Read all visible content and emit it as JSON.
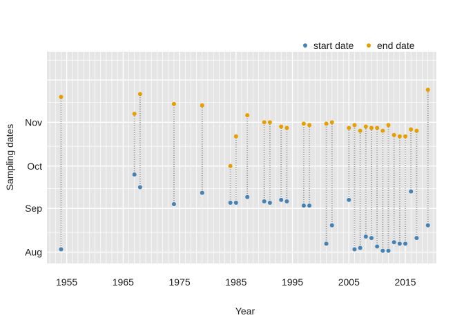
{
  "chart_data": {
    "type": "scatter",
    "xlabel": "Year",
    "ylabel": "Sampling dates",
    "xlim": [
      1951.5,
      2020.5
    ],
    "ylim": [
      "07-24",
      "12-21"
    ],
    "x_ticks": [
      {
        "value": 1955,
        "label": "1955"
      },
      {
        "value": 1965,
        "label": "1965"
      },
      {
        "value": 1975,
        "label": "1975"
      },
      {
        "value": 1985,
        "label": "1985"
      },
      {
        "value": 1995,
        "label": "1995"
      },
      {
        "value": 2005,
        "label": "2005"
      },
      {
        "value": 2015,
        "label": "2015"
      }
    ],
    "y_ticks": [
      {
        "value": "08-01",
        "label": "Aug"
      },
      {
        "value": "09-01",
        "label": "Sep"
      },
      {
        "value": "10-01",
        "label": "Oct"
      },
      {
        "value": "11-01",
        "label": "Nov"
      }
    ],
    "grid": true,
    "legend_position": "top-right",
    "series": [
      {
        "name": "start date",
        "color": "#4682b4",
        "points": [
          {
            "x": 1954,
            "y": "08-03"
          },
          {
            "x": 1967,
            "y": "09-25"
          },
          {
            "x": 1968,
            "y": "09-16"
          },
          {
            "x": 1974,
            "y": "09-04"
          },
          {
            "x": 1979,
            "y": "09-12"
          },
          {
            "x": 1984,
            "y": "09-05"
          },
          {
            "x": 1985,
            "y": "09-05"
          },
          {
            "x": 1987,
            "y": "09-09"
          },
          {
            "x": 1990,
            "y": "09-06"
          },
          {
            "x": 1991,
            "y": "09-05"
          },
          {
            "x": 1993,
            "y": "09-07"
          },
          {
            "x": 1994,
            "y": "09-06"
          },
          {
            "x": 1997,
            "y": "09-03"
          },
          {
            "x": 1998,
            "y": "09-03"
          },
          {
            "x": 2001,
            "y": "08-07"
          },
          {
            "x": 2002,
            "y": "08-20"
          },
          {
            "x": 2005,
            "y": "09-07"
          },
          {
            "x": 2006,
            "y": "08-03"
          },
          {
            "x": 2007,
            "y": "08-04"
          },
          {
            "x": 2008,
            "y": "08-12"
          },
          {
            "x": 2009,
            "y": "08-11"
          },
          {
            "x": 2010,
            "y": "08-05"
          },
          {
            "x": 2011,
            "y": "08-02"
          },
          {
            "x": 2012,
            "y": "08-02"
          },
          {
            "x": 2013,
            "y": "08-08"
          },
          {
            "x": 2014,
            "y": "08-07"
          },
          {
            "x": 2015,
            "y": "08-07"
          },
          {
            "x": 2016,
            "y": "09-13"
          },
          {
            "x": 2017,
            "y": "08-11"
          },
          {
            "x": 2019,
            "y": "08-20"
          }
        ]
      },
      {
        "name": "end date",
        "color": "#e69f00",
        "points": [
          {
            "x": 1954,
            "y": "11-19"
          },
          {
            "x": 1967,
            "y": "11-07"
          },
          {
            "x": 1968,
            "y": "11-21"
          },
          {
            "x": 1974,
            "y": "11-14"
          },
          {
            "x": 1979,
            "y": "11-13"
          },
          {
            "x": 1984,
            "y": "10-01"
          },
          {
            "x": 1985,
            "y": "10-22"
          },
          {
            "x": 1987,
            "y": "11-06"
          },
          {
            "x": 1990,
            "y": "11-01"
          },
          {
            "x": 1991,
            "y": "11-01"
          },
          {
            "x": 1993,
            "y": "10-29"
          },
          {
            "x": 1994,
            "y": "10-28"
          },
          {
            "x": 1997,
            "y": "10-31"
          },
          {
            "x": 1998,
            "y": "10-30"
          },
          {
            "x": 2001,
            "y": "10-31"
          },
          {
            "x": 2002,
            "y": "11-01"
          },
          {
            "x": 2005,
            "y": "10-28"
          },
          {
            "x": 2006,
            "y": "10-30"
          },
          {
            "x": 2007,
            "y": "10-26"
          },
          {
            "x": 2008,
            "y": "10-29"
          },
          {
            "x": 2009,
            "y": "10-28"
          },
          {
            "x": 2010,
            "y": "10-28"
          },
          {
            "x": 2011,
            "y": "10-26"
          },
          {
            "x": 2012,
            "y": "10-30"
          },
          {
            "x": 2013,
            "y": "10-23"
          },
          {
            "x": 2014,
            "y": "10-22"
          },
          {
            "x": 2015,
            "y": "10-22"
          },
          {
            "x": 2016,
            "y": "10-27"
          },
          {
            "x": 2017,
            "y": "10-26"
          },
          {
            "x": 2019,
            "y": "11-24"
          }
        ]
      }
    ]
  },
  "colors": {
    "panel_background": "#e5e5e5",
    "grid": "#ffffff",
    "sample_dots": "#9a9a9a",
    "text": "#1a1a1a"
  }
}
